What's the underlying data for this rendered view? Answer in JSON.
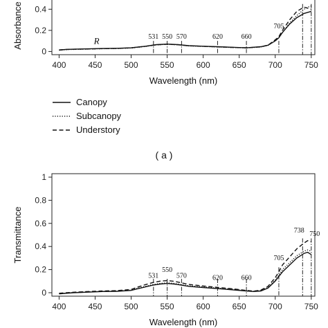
{
  "chart_data": [
    {
      "type": "line",
      "panel": "top",
      "ylabel": "Absorbance",
      "xlabel": "Wavelength (nm)",
      "xlim": [
        390,
        755
      ],
      "ylim": [
        -0.03,
        0.52
      ],
      "xticks": [
        400,
        450,
        500,
        550,
        600,
        650,
        700,
        750
      ],
      "yticks": [
        0,
        0.2,
        0.4
      ],
      "ytick_labels": [
        "0",
        "0.2",
        "0.4"
      ],
      "annotations": [
        "531",
        "550",
        "570",
        "620",
        "660",
        "705"
      ],
      "annotation_x": [
        531,
        550,
        570,
        620,
        660,
        705
      ],
      "vlines": [
        531,
        550,
        570,
        620,
        660,
        705,
        738,
        750
      ],
      "region_label": "R",
      "region_label_x": 452,
      "series": [
        {
          "name": "Canopy",
          "style": "solid",
          "x": [
            400,
            410,
            420,
            440,
            460,
            480,
            500,
            520,
            535,
            550,
            565,
            580,
            600,
            620,
            640,
            660,
            680,
            690,
            700,
            705,
            710,
            720,
            730,
            735,
            740,
            745,
            750
          ],
          "y": [
            0.015,
            0.02,
            0.022,
            0.025,
            0.028,
            0.03,
            0.035,
            0.05,
            0.065,
            0.07,
            0.065,
            0.055,
            0.05,
            0.045,
            0.04,
            0.035,
            0.045,
            0.06,
            0.1,
            0.13,
            0.18,
            0.26,
            0.32,
            0.34,
            0.36,
            0.37,
            0.38
          ]
        },
        {
          "name": "Subcanopy",
          "style": "dotted",
          "x": [
            400,
            410,
            420,
            440,
            460,
            480,
            500,
            520,
            535,
            550,
            565,
            580,
            600,
            620,
            640,
            660,
            680,
            690,
            700,
            705,
            710,
            720,
            730,
            735,
            740,
            745,
            750
          ],
          "y": [
            0.012,
            0.018,
            0.02,
            0.023,
            0.026,
            0.028,
            0.033,
            0.048,
            0.062,
            0.068,
            0.063,
            0.053,
            0.048,
            0.043,
            0.038,
            0.034,
            0.043,
            0.058,
            0.1,
            0.13,
            0.18,
            0.27,
            0.34,
            0.37,
            0.4,
            0.42,
            0.43
          ]
        },
        {
          "name": "Understory",
          "style": "dashed",
          "x": [
            400,
            410,
            420,
            440,
            460,
            480,
            500,
            520,
            535,
            550,
            565,
            580,
            600,
            620,
            640,
            660,
            680,
            690,
            700,
            705,
            710,
            720,
            730,
            735,
            740,
            745,
            750
          ],
          "y": [
            0.013,
            0.019,
            0.021,
            0.024,
            0.027,
            0.029,
            0.034,
            0.049,
            0.063,
            0.069,
            0.064,
            0.054,
            0.049,
            0.044,
            0.039,
            0.035,
            0.044,
            0.06,
            0.11,
            0.14,
            0.2,
            0.3,
            0.38,
            0.4,
            0.42,
            0.41,
            0.4
          ]
        }
      ]
    },
    {
      "type": "line",
      "panel": "bottom",
      "ylabel": "Transmittance",
      "xlabel": "Wavelength (nm)",
      "xlim": [
        390,
        755
      ],
      "ylim": [
        -0.03,
        1.03
      ],
      "xticks": [
        400,
        450,
        500,
        550,
        600,
        650,
        700,
        750
      ],
      "yticks": [
        0,
        0.2,
        0.4,
        0.6,
        0.8,
        1
      ],
      "ytick_labels": [
        "0",
        "0.2",
        "0.4",
        "0.6",
        "0.8",
        "1"
      ],
      "annotations": [
        "531",
        "550",
        "570",
        "620",
        "660",
        "705",
        "738",
        "750"
      ],
      "annotation_x": [
        531,
        550,
        570,
        620,
        660,
        705,
        738,
        750
      ],
      "vlines": [
        531,
        550,
        570,
        620,
        660,
        705,
        738,
        750
      ],
      "series": [
        {
          "name": "Canopy",
          "style": "solid",
          "x": [
            400,
            420,
            440,
            460,
            480,
            500,
            510,
            520,
            530,
            540,
            550,
            560,
            570,
            580,
            600,
            620,
            640,
            660,
            670,
            680,
            690,
            700,
            705,
            710,
            720,
            730,
            740,
            745,
            750
          ],
          "y": [
            -0.01,
            0.0,
            0.005,
            0.01,
            0.012,
            0.02,
            0.035,
            0.05,
            0.065,
            0.075,
            0.08,
            0.075,
            0.065,
            0.055,
            0.045,
            0.035,
            0.025,
            0.015,
            0.01,
            0.015,
            0.04,
            0.1,
            0.14,
            0.18,
            0.24,
            0.3,
            0.34,
            0.35,
            0.33
          ]
        },
        {
          "name": "Subcanopy",
          "style": "dotted",
          "x": [
            400,
            420,
            440,
            460,
            480,
            500,
            510,
            520,
            530,
            540,
            550,
            560,
            570,
            580,
            600,
            620,
            640,
            660,
            670,
            680,
            690,
            700,
            705,
            710,
            720,
            730,
            740,
            745,
            750
          ],
          "y": [
            -0.008,
            0.002,
            0.007,
            0.012,
            0.014,
            0.022,
            0.04,
            0.055,
            0.07,
            0.08,
            0.085,
            0.08,
            0.07,
            0.06,
            0.05,
            0.04,
            0.03,
            0.018,
            0.012,
            0.018,
            0.045,
            0.11,
            0.15,
            0.2,
            0.26,
            0.32,
            0.36,
            0.37,
            0.36
          ]
        },
        {
          "name": "Understory",
          "style": "dashed",
          "x": [
            400,
            420,
            440,
            460,
            480,
            500,
            510,
            520,
            530,
            540,
            550,
            560,
            570,
            580,
            600,
            620,
            640,
            660,
            670,
            680,
            690,
            700,
            705,
            710,
            720,
            730,
            740,
            745,
            750
          ],
          "y": [
            -0.005,
            0.004,
            0.01,
            0.015,
            0.018,
            0.028,
            0.05,
            0.07,
            0.088,
            0.1,
            0.105,
            0.098,
            0.085,
            0.072,
            0.058,
            0.046,
            0.034,
            0.02,
            0.014,
            0.022,
            0.055,
            0.13,
            0.18,
            0.24,
            0.31,
            0.38,
            0.43,
            0.45,
            0.44
          ]
        }
      ]
    }
  ],
  "legend": {
    "entries": [
      {
        "name": "Canopy",
        "style": "solid"
      },
      {
        "name": "Subcanopy",
        "style": "dotted"
      },
      {
        "name": "Understory",
        "style": "dashed"
      }
    ]
  },
  "panel_label_a": "( a )"
}
